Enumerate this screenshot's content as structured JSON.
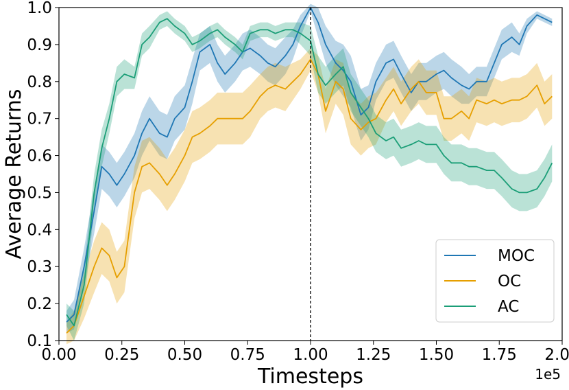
{
  "chart_data": {
    "type": "line",
    "xlabel": "Timesteps",
    "ylabel": "Average Returns",
    "x_offset_label": "1e5",
    "xlim": [
      0.0,
      2.0
    ],
    "ylim": [
      0.1,
      1.0
    ],
    "x_ticks": [
      0.0,
      0.25,
      0.5,
      0.75,
      1.0,
      1.25,
      1.5,
      1.75,
      2.0
    ],
    "x_tick_labels": [
      "0.00",
      "0.25",
      "0.50",
      "0.75",
      "1.00",
      "1.25",
      "1.50",
      "1.75",
      "2.00"
    ],
    "y_ticks": [
      0.1,
      0.2,
      0.3,
      0.4,
      0.5,
      0.6,
      0.7,
      0.8,
      0.9,
      1.0
    ],
    "y_tick_labels": [
      "0.1",
      "0.2",
      "0.3",
      "0.4",
      "0.5",
      "0.6",
      "0.7",
      "0.8",
      "0.9",
      "1.0"
    ],
    "vline_x": 1.0,
    "vline_style": "dashed",
    "grid": false,
    "legend_position": "lower-right",
    "colors": {
      "MOC": "#1f77b4",
      "OC": "#e69f00",
      "AC": "#1b9e77"
    },
    "series": [
      {
        "name": "MOC",
        "x": [
          0.03,
          0.06,
          0.1,
          0.14,
          0.17,
          0.2,
          0.23,
          0.26,
          0.3,
          0.33,
          0.36,
          0.4,
          0.43,
          0.46,
          0.5,
          0.53,
          0.56,
          0.6,
          0.63,
          0.66,
          0.7,
          0.73,
          0.76,
          0.8,
          0.83,
          0.86,
          0.9,
          0.93,
          0.96,
          1.0,
          1.03,
          1.06,
          1.1,
          1.13,
          1.16,
          1.2,
          1.23,
          1.26,
          1.3,
          1.33,
          1.36,
          1.4,
          1.43,
          1.46,
          1.5,
          1.53,
          1.56,
          1.6,
          1.63,
          1.66,
          1.7,
          1.73,
          1.76,
          1.8,
          1.83,
          1.86,
          1.9,
          1.93,
          1.96
        ],
        "y": [
          0.15,
          0.17,
          0.3,
          0.45,
          0.57,
          0.55,
          0.52,
          0.55,
          0.6,
          0.66,
          0.7,
          0.66,
          0.65,
          0.7,
          0.73,
          0.8,
          0.88,
          0.9,
          0.85,
          0.82,
          0.85,
          0.88,
          0.89,
          0.87,
          0.85,
          0.84,
          0.87,
          0.9,
          0.95,
          1.0,
          0.96,
          0.9,
          0.85,
          0.83,
          0.8,
          0.71,
          0.73,
          0.8,
          0.85,
          0.86,
          0.82,
          0.77,
          0.8,
          0.8,
          0.82,
          0.83,
          0.81,
          0.79,
          0.78,
          0.8,
          0.8,
          0.85,
          0.9,
          0.92,
          0.9,
          0.95,
          0.98,
          0.97,
          0.96
        ],
        "err": [
          0.03,
          0.04,
          0.05,
          0.06,
          0.06,
          0.06,
          0.06,
          0.06,
          0.06,
          0.06,
          0.06,
          0.06,
          0.06,
          0.06,
          0.06,
          0.06,
          0.05,
          0.05,
          0.05,
          0.05,
          0.05,
          0.05,
          0.05,
          0.05,
          0.05,
          0.05,
          0.05,
          0.04,
          0.03,
          0.01,
          0.04,
          0.05,
          0.06,
          0.07,
          0.07,
          0.07,
          0.06,
          0.05,
          0.05,
          0.05,
          0.05,
          0.05,
          0.05,
          0.05,
          0.05,
          0.05,
          0.05,
          0.05,
          0.04,
          0.04,
          0.04,
          0.04,
          0.04,
          0.04,
          0.03,
          0.02,
          0.01,
          0.01,
          0.01
        ]
      },
      {
        "name": "OC",
        "x": [
          0.03,
          0.06,
          0.1,
          0.14,
          0.17,
          0.2,
          0.23,
          0.26,
          0.3,
          0.33,
          0.36,
          0.4,
          0.43,
          0.46,
          0.5,
          0.53,
          0.56,
          0.6,
          0.63,
          0.66,
          0.7,
          0.73,
          0.76,
          0.8,
          0.83,
          0.86,
          0.9,
          0.93,
          0.96,
          1.0,
          1.03,
          1.06,
          1.1,
          1.13,
          1.16,
          1.2,
          1.23,
          1.26,
          1.3,
          1.33,
          1.36,
          1.4,
          1.43,
          1.46,
          1.5,
          1.53,
          1.56,
          1.6,
          1.63,
          1.66,
          1.7,
          1.73,
          1.76,
          1.8,
          1.83,
          1.86,
          1.9,
          1.93,
          1.96
        ],
        "y": [
          0.12,
          0.14,
          0.22,
          0.3,
          0.35,
          0.33,
          0.27,
          0.3,
          0.5,
          0.57,
          0.58,
          0.55,
          0.52,
          0.55,
          0.6,
          0.65,
          0.66,
          0.68,
          0.7,
          0.7,
          0.7,
          0.7,
          0.72,
          0.76,
          0.78,
          0.79,
          0.78,
          0.8,
          0.82,
          0.86,
          0.82,
          0.72,
          0.8,
          0.78,
          0.7,
          0.67,
          0.69,
          0.7,
          0.75,
          0.78,
          0.74,
          0.78,
          0.8,
          0.77,
          0.77,
          0.7,
          0.7,
          0.72,
          0.7,
          0.75,
          0.74,
          0.75,
          0.74,
          0.75,
          0.75,
          0.76,
          0.79,
          0.74,
          0.76
        ],
        "err": [
          0.03,
          0.04,
          0.06,
          0.07,
          0.07,
          0.07,
          0.07,
          0.07,
          0.07,
          0.07,
          0.07,
          0.07,
          0.07,
          0.07,
          0.07,
          0.07,
          0.07,
          0.07,
          0.07,
          0.07,
          0.07,
          0.07,
          0.07,
          0.06,
          0.06,
          0.06,
          0.06,
          0.05,
          0.04,
          0.03,
          0.05,
          0.06,
          0.06,
          0.07,
          0.07,
          0.07,
          0.07,
          0.07,
          0.06,
          0.06,
          0.06,
          0.06,
          0.06,
          0.06,
          0.06,
          0.06,
          0.06,
          0.06,
          0.06,
          0.06,
          0.06,
          0.06,
          0.06,
          0.06,
          0.06,
          0.06,
          0.06,
          0.06,
          0.06
        ]
      },
      {
        "name": "AC",
        "x": [
          0.03,
          0.06,
          0.1,
          0.14,
          0.17,
          0.2,
          0.23,
          0.26,
          0.3,
          0.33,
          0.36,
          0.4,
          0.43,
          0.46,
          0.5,
          0.53,
          0.56,
          0.6,
          0.63,
          0.66,
          0.7,
          0.73,
          0.76,
          0.8,
          0.83,
          0.86,
          0.9,
          0.93,
          0.96,
          1.0,
          1.03,
          1.06,
          1.1,
          1.13,
          1.16,
          1.2,
          1.23,
          1.26,
          1.3,
          1.33,
          1.36,
          1.4,
          1.43,
          1.46,
          1.5,
          1.53,
          1.56,
          1.6,
          1.63,
          1.66,
          1.7,
          1.73,
          1.76,
          1.8,
          1.83,
          1.86,
          1.9,
          1.93,
          1.96
        ],
        "y": [
          0.17,
          0.14,
          0.25,
          0.5,
          0.62,
          0.7,
          0.8,
          0.82,
          0.81,
          0.9,
          0.92,
          0.96,
          0.97,
          0.95,
          0.93,
          0.9,
          0.91,
          0.93,
          0.94,
          0.92,
          0.9,
          0.88,
          0.93,
          0.94,
          0.94,
          0.93,
          0.94,
          0.94,
          0.93,
          0.91,
          0.82,
          0.79,
          0.82,
          0.84,
          0.77,
          0.73,
          0.7,
          0.66,
          0.64,
          0.65,
          0.62,
          0.63,
          0.64,
          0.63,
          0.63,
          0.6,
          0.58,
          0.58,
          0.57,
          0.57,
          0.56,
          0.56,
          0.54,
          0.51,
          0.5,
          0.5,
          0.51,
          0.54,
          0.58
        ],
        "err": [
          0.03,
          0.04,
          0.05,
          0.05,
          0.05,
          0.04,
          0.04,
          0.04,
          0.03,
          0.03,
          0.03,
          0.02,
          0.02,
          0.02,
          0.02,
          0.02,
          0.02,
          0.02,
          0.02,
          0.02,
          0.02,
          0.02,
          0.02,
          0.02,
          0.02,
          0.02,
          0.02,
          0.02,
          0.03,
          0.04,
          0.05,
          0.05,
          0.05,
          0.05,
          0.05,
          0.05,
          0.05,
          0.05,
          0.05,
          0.05,
          0.05,
          0.05,
          0.05,
          0.05,
          0.05,
          0.05,
          0.05,
          0.05,
          0.05,
          0.05,
          0.05,
          0.05,
          0.05,
          0.05,
          0.05,
          0.05,
          0.05,
          0.05,
          0.05
        ]
      }
    ]
  }
}
